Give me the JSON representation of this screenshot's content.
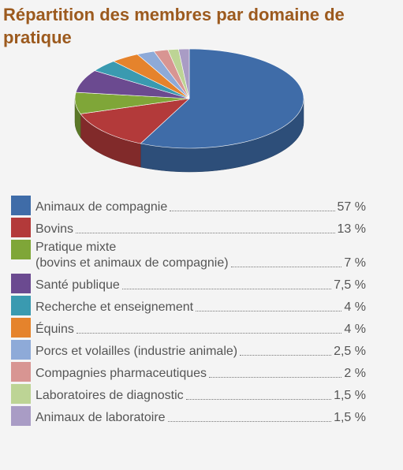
{
  "chart_data": {
    "type": "pie",
    "title": "Répartition des membres par domaine de pratique",
    "categories": [
      "Animaux de compagnie",
      "Bovins",
      "Pratique mixte\n(bovins et animaux de compagnie)",
      "Santé publique",
      "Recherche et enseignement",
      "Équins",
      "Porcs et volailles (industrie animale)",
      "Compagnies pharmaceutiques",
      "Laboratoires de diagnostic",
      "Animaux de laboratoire"
    ],
    "values": [
      57,
      13,
      7,
      7.5,
      4,
      4,
      2.5,
      2,
      1.5,
      1.5
    ],
    "value_labels": [
      "57 %",
      "13 %",
      "7 %",
      "7,5 %",
      "4 %",
      "4 %",
      "2,5 %",
      "2 %",
      "1,5 %",
      "1,5 %"
    ],
    "colors": [
      "#3f6ca8",
      "#b33a3a",
      "#7fa638",
      "#6b4a90",
      "#3a9ab0",
      "#e5832c",
      "#8eaad8",
      "#d89592",
      "#bdd495",
      "#a99cc5"
    ]
  }
}
